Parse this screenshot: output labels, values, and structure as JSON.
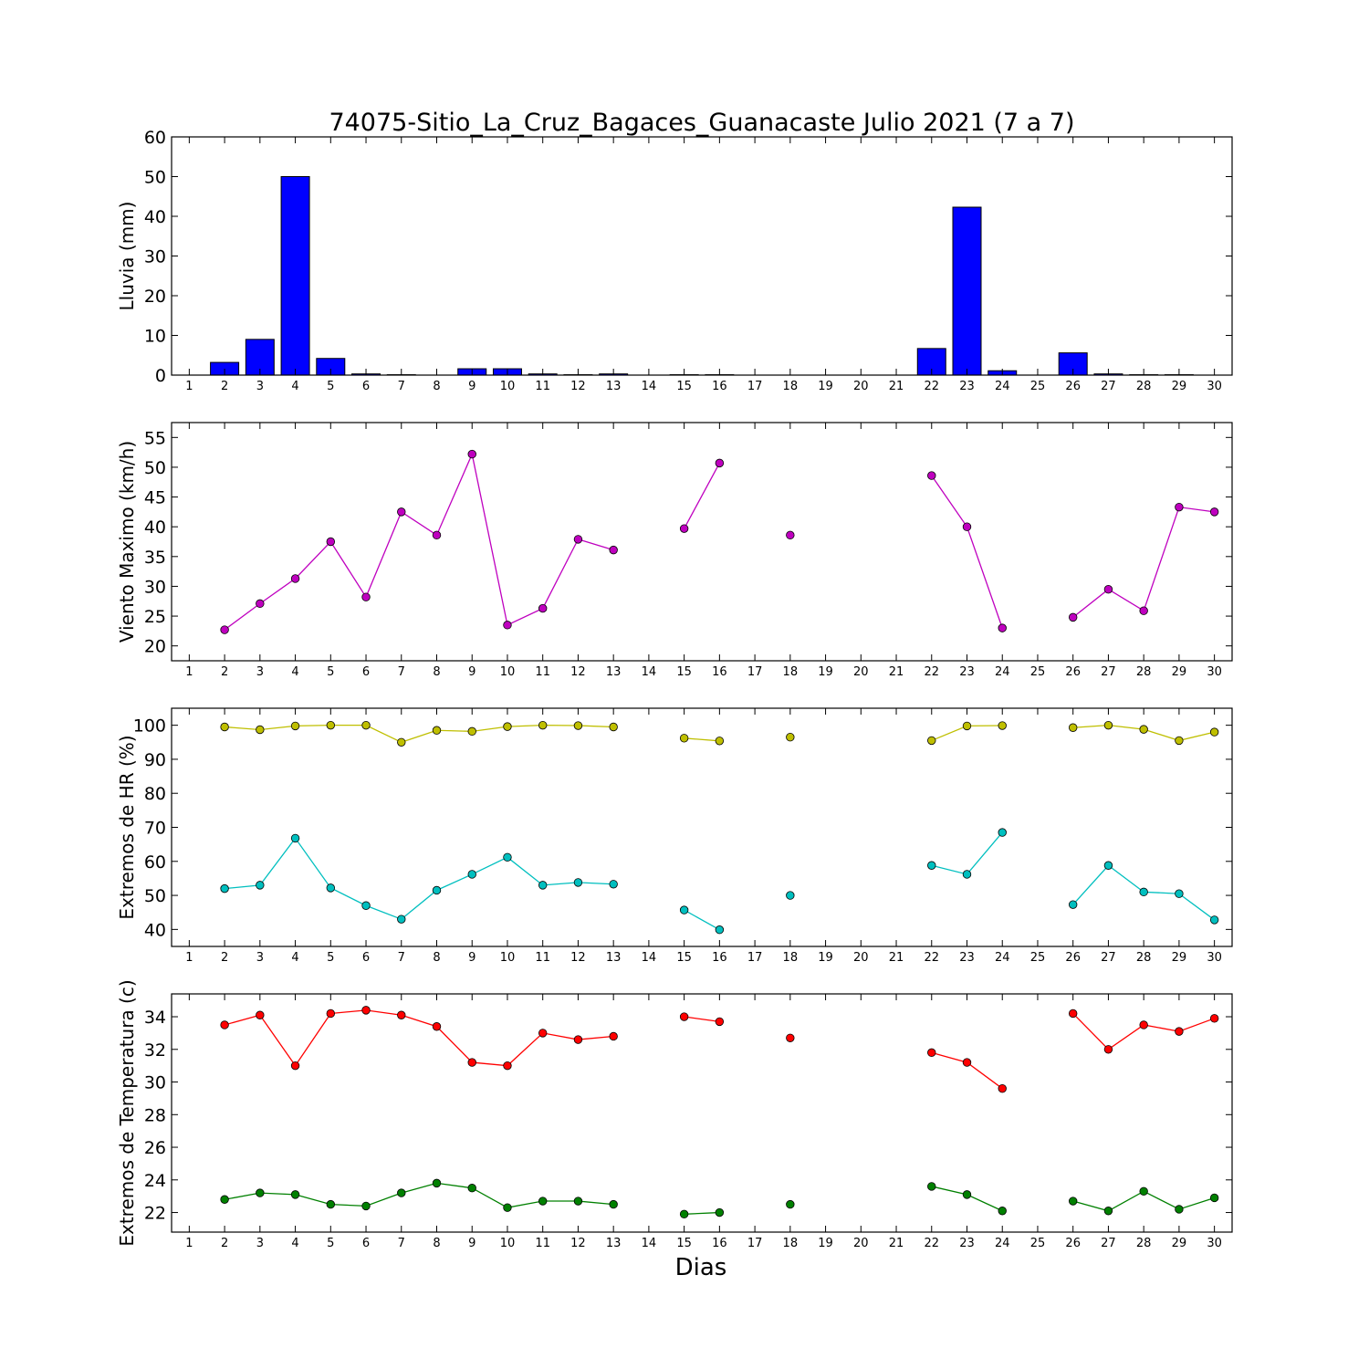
{
  "title": "74075-Sitio_La_Cruz_Bagaces_Guanacaste Julio 2021  (7 a 7)",
  "xlabel": "Dias",
  "colors": {
    "rain": "#0000ff",
    "wind": "#bf00bf",
    "hr_max": "#bfbf00",
    "hr_min": "#00bfbf",
    "temp_max": "#ff0000",
    "temp_min": "#008000"
  },
  "chart_data": [
    {
      "type": "bar",
      "ylabel": "Lluvia (mm)",
      "ylim": [
        0,
        60
      ],
      "yticks": [
        0,
        10,
        20,
        30,
        40,
        50,
        60
      ],
      "x": [
        1,
        2,
        3,
        4,
        5,
        6,
        7,
        8,
        9,
        10,
        11,
        12,
        13,
        14,
        15,
        16,
        17,
        18,
        19,
        20,
        21,
        22,
        23,
        24,
        25,
        26,
        27,
        28,
        29,
        30
      ],
      "series": [
        {
          "color": "#0000ff",
          "values": [
            0,
            3.2,
            9,
            50,
            4.2,
            0.3,
            0.1,
            0,
            1.6,
            1.6,
            0.3,
            0.1,
            0.3,
            0,
            0.1,
            0.1,
            0,
            0,
            0,
            0,
            0,
            6.7,
            42.3,
            1.1,
            0,
            5.6,
            0.3,
            0.1,
            0.1,
            0
          ]
        }
      ]
    },
    {
      "type": "line",
      "ylabel": "Viento Maximo (km/h)",
      "ylim": [
        17.5,
        57.5
      ],
      "yticks": [
        20,
        25,
        30,
        35,
        40,
        45,
        50,
        55
      ],
      "x": [
        1,
        2,
        3,
        4,
        5,
        6,
        7,
        8,
        9,
        10,
        11,
        12,
        13,
        14,
        15,
        16,
        17,
        18,
        19,
        20,
        21,
        22,
        23,
        24,
        25,
        26,
        27,
        28,
        29,
        30
      ],
      "series": [
        {
          "color": "#bf00bf",
          "values": [
            null,
            22.7,
            27.1,
            31.3,
            37.5,
            28.2,
            42.5,
            38.6,
            52.2,
            23.5,
            26.3,
            37.9,
            36.1,
            null,
            39.7,
            50.7,
            null,
            38.6,
            null,
            null,
            null,
            48.6,
            40.0,
            23.0,
            null,
            24.8,
            29.5,
            25.9,
            43.3,
            42.5
          ]
        }
      ]
    },
    {
      "type": "line",
      "ylabel": "Extremos de HR (%)",
      "ylim": [
        35,
        105
      ],
      "yticks": [
        40,
        50,
        60,
        70,
        80,
        90,
        100
      ],
      "x": [
        1,
        2,
        3,
        4,
        5,
        6,
        7,
        8,
        9,
        10,
        11,
        12,
        13,
        14,
        15,
        16,
        17,
        18,
        19,
        20,
        21,
        22,
        23,
        24,
        25,
        26,
        27,
        28,
        29,
        30
      ],
      "series": [
        {
          "color": "#bfbf00",
          "values": [
            null,
            99.5,
            98.7,
            99.8,
            100,
            100,
            95.0,
            98.5,
            98.2,
            99.6,
            100,
            99.9,
            99.5,
            null,
            96.2,
            95.4,
            null,
            96.5,
            null,
            null,
            null,
            95.5,
            99.8,
            99.9,
            null,
            99.3,
            100,
            98.8,
            95.5,
            98.0
          ]
        },
        {
          "color": "#00bfbf",
          "values": [
            null,
            52.0,
            53.0,
            66.8,
            52.2,
            47.0,
            43.0,
            51.5,
            56.2,
            61.2,
            53.0,
            53.8,
            53.3,
            null,
            45.7,
            39.9,
            null,
            50.0,
            null,
            null,
            null,
            58.8,
            56.2,
            68.5,
            null,
            47.3,
            58.8,
            51.0,
            50.5,
            42.8
          ]
        }
      ]
    },
    {
      "type": "line",
      "ylabel": "Extremos de Temperatura (c)",
      "ylim": [
        20.8,
        35.4
      ],
      "yticks": [
        22,
        24,
        26,
        28,
        30,
        32,
        34
      ],
      "x": [
        1,
        2,
        3,
        4,
        5,
        6,
        7,
        8,
        9,
        10,
        11,
        12,
        13,
        14,
        15,
        16,
        17,
        18,
        19,
        20,
        21,
        22,
        23,
        24,
        25,
        26,
        27,
        28,
        29,
        30
      ],
      "series": [
        {
          "color": "#ff0000",
          "values": [
            null,
            33.5,
            34.1,
            31.0,
            34.2,
            34.4,
            34.1,
            33.4,
            31.2,
            31.0,
            33.0,
            32.6,
            32.8,
            null,
            34.0,
            33.7,
            null,
            32.7,
            null,
            null,
            null,
            31.8,
            31.2,
            29.6,
            null,
            34.2,
            32.0,
            33.5,
            33.1,
            33.9
          ]
        },
        {
          "color": "#008000",
          "values": [
            null,
            22.8,
            23.2,
            23.1,
            22.5,
            22.4,
            23.2,
            23.8,
            23.5,
            22.3,
            22.7,
            22.7,
            22.5,
            null,
            21.9,
            22.0,
            null,
            22.5,
            null,
            null,
            null,
            23.6,
            23.1,
            22.1,
            null,
            22.7,
            22.1,
            23.3,
            22.2,
            22.9
          ]
        }
      ]
    }
  ]
}
